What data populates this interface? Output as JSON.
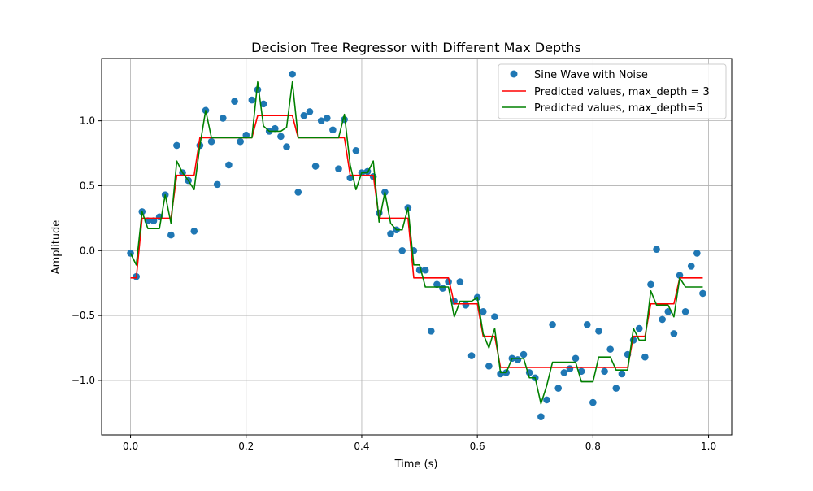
{
  "chart_data": {
    "type": "line",
    "title": "Decision Tree Regressor with Different Max Depths",
    "xlabel": "Time (s)",
    "ylabel": "Amplitude",
    "xlim": [
      -0.05,
      1.04
    ],
    "ylim": [
      -1.42,
      1.48
    ],
    "xticks": [
      0.0,
      0.2,
      0.4,
      0.6,
      0.8,
      1.0
    ],
    "xtick_labels": [
      "0.0",
      "0.2",
      "0.4",
      "0.6",
      "0.8",
      "1.0"
    ],
    "yticks": [
      -1.0,
      -0.5,
      0.0,
      0.5,
      1.0
    ],
    "ytick_labels": [
      "−1.0",
      "−0.5",
      "0.0",
      "0.5",
      "1.0"
    ],
    "grid": true,
    "legend_position": "top-right",
    "scatter": {
      "name": "Sine Wave with Noise",
      "color": "#1f77b4",
      "x": [
        0.0,
        0.01,
        0.02,
        0.03,
        0.04,
        0.05,
        0.06,
        0.07,
        0.08,
        0.09,
        0.1,
        0.11,
        0.12,
        0.13,
        0.14,
        0.15,
        0.16,
        0.17,
        0.18,
        0.19,
        0.2,
        0.21,
        0.22,
        0.23,
        0.24,
        0.25,
        0.26,
        0.27,
        0.28,
        0.29,
        0.3,
        0.31,
        0.32,
        0.33,
        0.34,
        0.35,
        0.36,
        0.37,
        0.38,
        0.39,
        0.4,
        0.41,
        0.42,
        0.43,
        0.44,
        0.45,
        0.46,
        0.47,
        0.48,
        0.49,
        0.5,
        0.51,
        0.52,
        0.53,
        0.54,
        0.55,
        0.56,
        0.57,
        0.58,
        0.59,
        0.6,
        0.61,
        0.62,
        0.63,
        0.64,
        0.65,
        0.66,
        0.67,
        0.68,
        0.69,
        0.7,
        0.71,
        0.72,
        0.73,
        0.74,
        0.75,
        0.76,
        0.77,
        0.78,
        0.79,
        0.8,
        0.81,
        0.82,
        0.83,
        0.84,
        0.85,
        0.86,
        0.87,
        0.88,
        0.89,
        0.9,
        0.91,
        0.92,
        0.93,
        0.94,
        0.95,
        0.96,
        0.97,
        0.98,
        0.99
      ],
      "y": [
        -0.02,
        -0.2,
        0.3,
        0.23,
        0.23,
        0.26,
        0.43,
        0.12,
        0.81,
        0.6,
        0.54,
        0.15,
        0.81,
        1.08,
        0.84,
        0.51,
        1.02,
        0.66,
        1.15,
        0.84,
        0.89,
        1.16,
        1.24,
        1.13,
        0.92,
        0.94,
        0.88,
        0.8,
        1.36,
        0.45,
        1.04,
        1.07,
        0.65,
        1.0,
        1.02,
        0.93,
        0.63,
        1.01,
        0.56,
        0.77,
        0.6,
        0.61,
        0.57,
        0.29,
        0.45,
        0.13,
        0.16,
        0.0,
        0.33,
        0.0,
        -0.15,
        -0.15,
        -0.62,
        -0.26,
        -0.29,
        -0.24,
        -0.39,
        -0.24,
        -0.42,
        -0.81,
        -0.36,
        -0.47,
        -0.89,
        -0.51,
        -0.95,
        -0.94,
        -0.83,
        -0.84,
        -0.8,
        -0.94,
        -0.98,
        -1.28,
        -1.15,
        -0.57,
        -1.06,
        -0.94,
        -0.91,
        -0.83,
        -0.93,
        -0.57,
        -1.17,
        -0.62,
        -0.93,
        -0.76,
        -1.06,
        -0.95,
        -0.8,
        -0.69,
        -0.6,
        -0.82,
        -0.26,
        0.01,
        -0.53,
        -0.47,
        -0.64,
        -0.19,
        -0.47,
        -0.12,
        -0.02,
        -0.33
      ]
    },
    "series": [
      {
        "name": "Predicted values, max_depth = 3",
        "color": "#ff0000",
        "x": [
          0.0,
          0.01,
          0.02,
          0.03,
          0.04,
          0.05,
          0.06,
          0.07,
          0.08,
          0.09,
          0.1,
          0.11,
          0.12,
          0.13,
          0.14,
          0.15,
          0.16,
          0.17,
          0.18,
          0.19,
          0.2,
          0.21,
          0.22,
          0.23,
          0.24,
          0.25,
          0.26,
          0.27,
          0.28,
          0.29,
          0.3,
          0.31,
          0.32,
          0.33,
          0.34,
          0.35,
          0.36,
          0.37,
          0.38,
          0.39,
          0.4,
          0.41,
          0.42,
          0.43,
          0.44,
          0.45,
          0.46,
          0.47,
          0.48,
          0.49,
          0.5,
          0.51,
          0.52,
          0.53,
          0.54,
          0.55,
          0.56,
          0.57,
          0.58,
          0.59,
          0.6,
          0.61,
          0.62,
          0.63,
          0.64,
          0.65,
          0.66,
          0.67,
          0.68,
          0.69,
          0.7,
          0.71,
          0.72,
          0.73,
          0.74,
          0.75,
          0.76,
          0.77,
          0.78,
          0.79,
          0.8,
          0.81,
          0.82,
          0.83,
          0.84,
          0.85,
          0.86,
          0.87,
          0.88,
          0.89,
          0.9,
          0.91,
          0.92,
          0.93,
          0.94,
          0.95,
          0.96,
          0.97,
          0.98,
          0.99
        ],
        "y": [
          -0.21,
          -0.21,
          0.25,
          0.25,
          0.25,
          0.25,
          0.25,
          0.25,
          0.58,
          0.58,
          0.58,
          0.58,
          0.87,
          0.87,
          0.87,
          0.87,
          0.87,
          0.87,
          0.87,
          0.87,
          0.87,
          0.87,
          1.04,
          1.04,
          1.04,
          1.04,
          1.04,
          1.04,
          1.04,
          0.87,
          0.87,
          0.87,
          0.87,
          0.87,
          0.87,
          0.87,
          0.87,
          0.87,
          0.58,
          0.58,
          0.58,
          0.58,
          0.58,
          0.25,
          0.25,
          0.25,
          0.25,
          0.25,
          0.25,
          -0.21,
          -0.21,
          -0.21,
          -0.21,
          -0.21,
          -0.21,
          -0.21,
          -0.41,
          -0.41,
          -0.41,
          -0.41,
          -0.41,
          -0.66,
          -0.66,
          -0.66,
          -0.9,
          -0.9,
          -0.9,
          -0.9,
          -0.9,
          -0.9,
          -0.9,
          -0.9,
          -0.9,
          -0.9,
          -0.9,
          -0.9,
          -0.9,
          -0.9,
          -0.9,
          -0.9,
          -0.9,
          -0.9,
          -0.9,
          -0.9,
          -0.9,
          -0.9,
          -0.9,
          -0.66,
          -0.66,
          -0.66,
          -0.41,
          -0.41,
          -0.41,
          -0.41,
          -0.41,
          -0.21,
          -0.21,
          -0.21,
          -0.21,
          -0.21
        ]
      },
      {
        "name": "Predicted values, max_depth=5",
        "color": "#008000",
        "x": [
          0.0,
          0.01,
          0.02,
          0.03,
          0.04,
          0.05,
          0.06,
          0.07,
          0.08,
          0.09,
          0.1,
          0.11,
          0.12,
          0.13,
          0.14,
          0.15,
          0.16,
          0.17,
          0.18,
          0.19,
          0.2,
          0.21,
          0.22,
          0.23,
          0.24,
          0.25,
          0.26,
          0.27,
          0.28,
          0.29,
          0.3,
          0.31,
          0.32,
          0.33,
          0.34,
          0.35,
          0.36,
          0.37,
          0.38,
          0.39,
          0.4,
          0.41,
          0.42,
          0.43,
          0.44,
          0.45,
          0.46,
          0.47,
          0.48,
          0.49,
          0.5,
          0.51,
          0.52,
          0.53,
          0.54,
          0.55,
          0.56,
          0.57,
          0.58,
          0.59,
          0.6,
          0.61,
          0.62,
          0.63,
          0.64,
          0.65,
          0.66,
          0.67,
          0.68,
          0.69,
          0.7,
          0.71,
          0.72,
          0.73,
          0.74,
          0.75,
          0.76,
          0.77,
          0.78,
          0.79,
          0.8,
          0.81,
          0.82,
          0.83,
          0.84,
          0.85,
          0.86,
          0.87,
          0.88,
          0.89,
          0.9,
          0.91,
          0.92,
          0.93,
          0.94,
          0.95,
          0.96,
          0.97,
          0.98,
          0.99
        ],
        "y": [
          -0.02,
          -0.11,
          0.3,
          0.17,
          0.17,
          0.17,
          0.43,
          0.21,
          0.69,
          0.6,
          0.54,
          0.47,
          0.81,
          1.08,
          0.87,
          0.87,
          0.87,
          0.87,
          0.87,
          0.87,
          0.87,
          0.87,
          1.3,
          0.96,
          0.92,
          0.92,
          0.92,
          0.95,
          1.3,
          0.87,
          0.87,
          0.87,
          0.87,
          0.87,
          0.87,
          0.87,
          0.87,
          1.05,
          0.66,
          0.47,
          0.6,
          0.6,
          0.69,
          0.22,
          0.45,
          0.21,
          0.16,
          0.16,
          0.33,
          -0.11,
          -0.11,
          -0.28,
          -0.28,
          -0.28,
          -0.28,
          -0.28,
          -0.51,
          -0.39,
          -0.39,
          -0.39,
          -0.36,
          -0.64,
          -0.75,
          -0.6,
          -0.94,
          -0.94,
          -0.83,
          -0.83,
          -0.83,
          -0.98,
          -0.98,
          -1.18,
          -1.04,
          -0.86,
          -0.86,
          -0.86,
          -0.86,
          -0.86,
          -1.01,
          -1.01,
          -1.01,
          -0.82,
          -0.82,
          -0.82,
          -0.92,
          -0.92,
          -0.92,
          -0.6,
          -0.69,
          -0.69,
          -0.31,
          -0.42,
          -0.42,
          -0.42,
          -0.51,
          -0.21,
          -0.28,
          -0.28,
          -0.28,
          -0.28
        ]
      }
    ]
  }
}
